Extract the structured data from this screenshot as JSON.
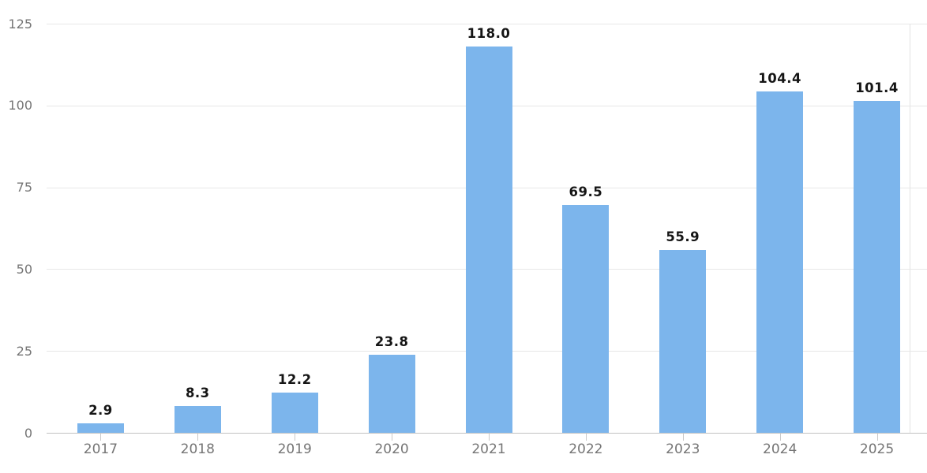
{
  "chart_data": {
    "type": "bar",
    "title": "",
    "xlabel": "",
    "ylabel": "",
    "categories": [
      "2017",
      "2018",
      "2019",
      "2020",
      "2021",
      "2022",
      "2023",
      "2024",
      "2025"
    ],
    "values": [
      2.9,
      8.3,
      12.2,
      23.8,
      118.0,
      69.5,
      55.9,
      104.4,
      101.4
    ],
    "value_labels": [
      "2.9",
      "8.3",
      "12.2",
      "23.8",
      "118.0",
      "69.5",
      "55.9",
      "104.4",
      "101.4"
    ],
    "ylim": [
      0,
      125
    ],
    "yticks": [
      0,
      25,
      50,
      75,
      100,
      125
    ],
    "ytick_labels": [
      "0",
      "25",
      "50",
      "75",
      "100",
      "125"
    ],
    "grid": "horizontal",
    "legend": "none",
    "colors": {
      "bar_fill": "#7cb5ec",
      "value_label": "#151515",
      "axis_text": "#757575",
      "gridline": "#e7e7e7",
      "axis_line": "#c2c2c2"
    }
  }
}
